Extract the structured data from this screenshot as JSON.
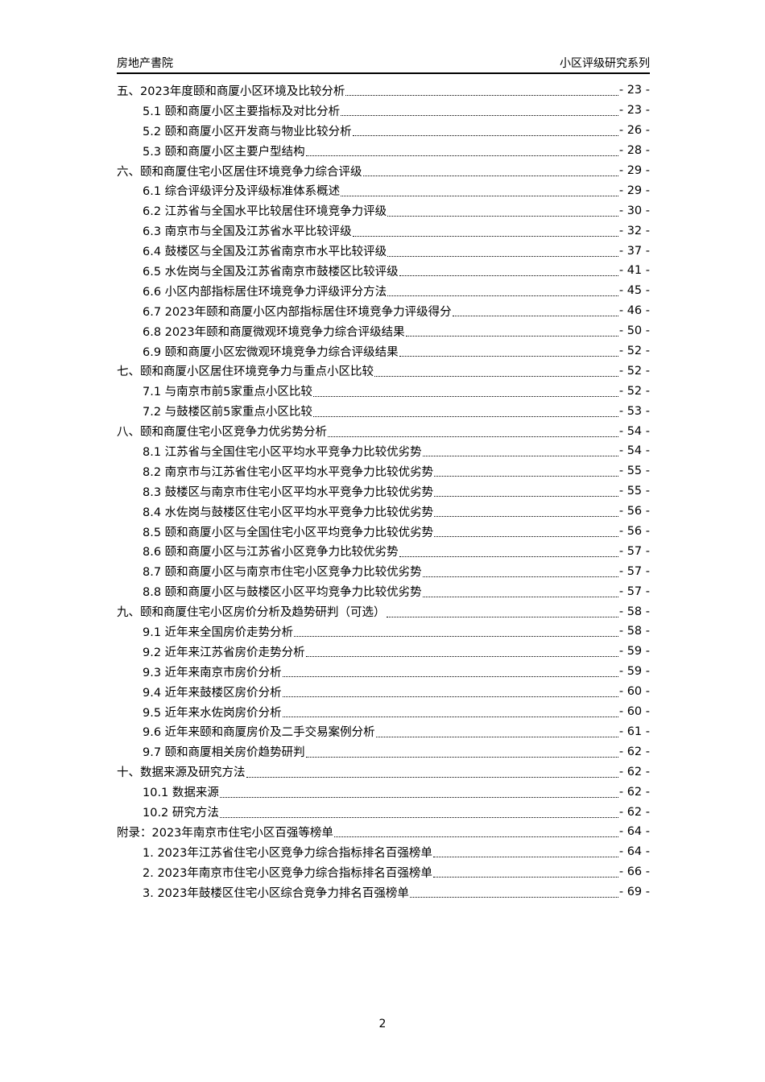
{
  "header": {
    "left": "房地产書院",
    "right": "小区评级研究系列"
  },
  "toc": [
    {
      "level": 1,
      "title": "五、2023年度颐和商厦小区环境及比较分析",
      "page": "- 23 -"
    },
    {
      "level": 2,
      "title": "5.1 颐和商厦小区主要指标及对比分析",
      "page": "- 23 -"
    },
    {
      "level": 2,
      "title": "5.2 颐和商厦小区开发商与物业比较分析",
      "page": "- 26 -"
    },
    {
      "level": 2,
      "title": "5.3 颐和商厦小区主要户型结构",
      "page": "- 28 -"
    },
    {
      "level": 1,
      "title": "六、颐和商厦住宅小区居住环境竞争力综合评级",
      "page": "- 29 -"
    },
    {
      "level": 2,
      "title": "6.1 综合评级评分及评级标准体系概述",
      "page": "- 29 -"
    },
    {
      "level": 2,
      "title": "6.2 江苏省与全国水平比较居住环境竞争力评级",
      "page": "- 30 -"
    },
    {
      "level": 2,
      "title": "6.3 南京市与全国及江苏省水平比较评级",
      "page": "- 32 -"
    },
    {
      "level": 2,
      "title": "6.4 鼓楼区与全国及江苏省南京市水平比较评级",
      "page": "- 37 -"
    },
    {
      "level": 2,
      "title": "6.5 水佐岗与全国及江苏省南京市鼓楼区比较评级",
      "page": "- 41 -"
    },
    {
      "level": 2,
      "title": "6.6 小区内部指标居住环境竞争力评级评分方法",
      "page": "- 45 -"
    },
    {
      "level": 2,
      "title": "6.7 2023年颐和商厦小区内部指标居住环境竞争力评级得分",
      "page": "- 46 -"
    },
    {
      "level": 2,
      "title": "6.8 2023年颐和商厦微观环境竞争力综合评级结果",
      "page": "- 50 -"
    },
    {
      "level": 2,
      "title": "6.9 颐和商厦小区宏微观环境竞争力综合评级结果",
      "page": "- 52 -"
    },
    {
      "level": 1,
      "title": "七、颐和商厦小区居住环境竞争力与重点小区比较",
      "page": "- 52 -"
    },
    {
      "level": 2,
      "title": "7.1 与南京市前5家重点小区比较",
      "page": "- 52 -"
    },
    {
      "level": 2,
      "title": "7.2 与鼓楼区前5家重点小区比较",
      "page": "- 53 -"
    },
    {
      "level": 1,
      "title": "八、颐和商厦住宅小区竞争力优劣势分析",
      "page": "- 54 -"
    },
    {
      "level": 2,
      "title": "8.1 江苏省与全国住宅小区平均水平竞争力比较优劣势",
      "page": "- 54 -"
    },
    {
      "level": 2,
      "title": "8.2 南京市与江苏省住宅小区平均水平竞争力比较优劣势",
      "page": "- 55 -"
    },
    {
      "level": 2,
      "title": "8.3 鼓楼区与南京市住宅小区平均水平竞争力比较优劣势",
      "page": "- 55 -"
    },
    {
      "level": 2,
      "title": "8.4 水佐岗与鼓楼区住宅小区平均水平竞争力比较优劣势",
      "page": "- 56 -"
    },
    {
      "level": 2,
      "title": "8.5 颐和商厦小区与全国住宅小区平均竞争力比较优劣势",
      "page": "- 56 -"
    },
    {
      "level": 2,
      "title": "8.6 颐和商厦小区与江苏省小区竞争力比较优劣势",
      "page": "- 57 -"
    },
    {
      "level": 2,
      "title": "8.7 颐和商厦小区与南京市住宅小区竞争力比较优劣势",
      "page": "- 57 -"
    },
    {
      "level": 2,
      "title": "8.8 颐和商厦小区与鼓楼区小区平均竞争力比较优劣势",
      "page": "- 57 -"
    },
    {
      "level": 1,
      "title": "九、颐和商厦住宅小区房价分析及趋势研判（可选）",
      "page": "- 58 -"
    },
    {
      "level": 2,
      "title": "9.1 近年来全国房价走势分析",
      "page": "- 58 -"
    },
    {
      "level": 2,
      "title": "9.2 近年来江苏省房价走势分析",
      "page": "- 59 -"
    },
    {
      "level": 2,
      "title": "9.3 近年来南京市房价分析",
      "page": "- 59 -"
    },
    {
      "level": 2,
      "title": "9.4 近年来鼓楼区房价分析",
      "page": "- 60 -"
    },
    {
      "level": 2,
      "title": "9.5 近年来水佐岗房价分析",
      "page": "- 60 -"
    },
    {
      "level": 2,
      "title": "9.6 近年来颐和商厦房价及二手交易案例分析",
      "page": "- 61 -"
    },
    {
      "level": 2,
      "title": "9.7 颐和商厦相关房价趋势研判",
      "page": "- 62 -"
    },
    {
      "level": 1,
      "title": "十、数据来源及研究方法",
      "page": "- 62 -"
    },
    {
      "level": 2,
      "title": "10.1 数据来源",
      "page": "- 62 -"
    },
    {
      "level": 2,
      "title": "10.2 研究方法",
      "page": "- 62 -"
    },
    {
      "level": 1,
      "title": "附录：2023年南京市住宅小区百强等榜单",
      "page": "- 64 -"
    },
    {
      "level": 2,
      "title": "1. 2023年江苏省住宅小区竞争力综合指标排名百强榜单",
      "page": "- 64 -"
    },
    {
      "level": 2,
      "title": "2. 2023年南京市住宅小区竞争力综合指标排名百强榜单",
      "page": "- 66 -"
    },
    {
      "level": 2,
      "title": "3. 2023年鼓楼区住宅小区综合竞争力排名百强榜单",
      "page": "- 69 -"
    }
  ],
  "footer": {
    "page_number": "2"
  }
}
